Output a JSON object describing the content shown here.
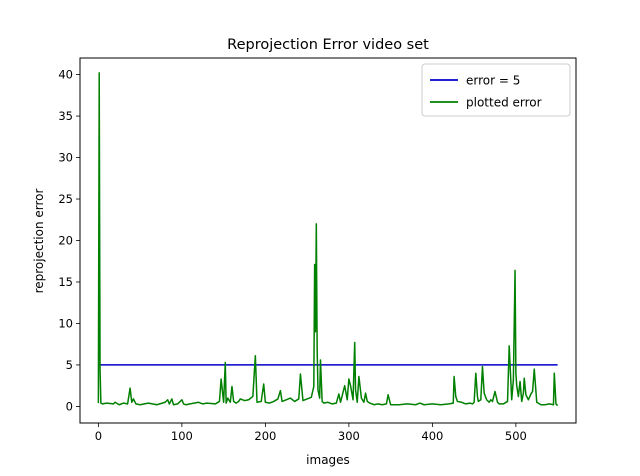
{
  "chart_data": {
    "type": "line",
    "title": "Reprojection Error video set",
    "xlabel": "images",
    "ylabel": "reprojection error",
    "xlim": [
      -22,
      572
    ],
    "ylim": [
      -2,
      42
    ],
    "xticks": [
      0,
      100,
      200,
      300,
      400,
      500
    ],
    "yticks": [
      0,
      5,
      10,
      15,
      20,
      25,
      30,
      35,
      40
    ],
    "grid": false,
    "legend_position": "top-right",
    "series": [
      {
        "name": "error = 5",
        "color": "#0000cc",
        "x": [
          0,
          550
        ],
        "y": [
          5,
          5
        ]
      },
      {
        "name": "plotted error",
        "color": "#008000",
        "x": [
          0,
          1,
          2,
          3,
          5,
          10,
          18,
          20,
          25,
          30,
          35,
          38,
          40,
          42,
          45,
          50,
          55,
          60,
          70,
          80,
          83,
          85,
          88,
          90,
          95,
          100,
          102,
          105,
          110,
          120,
          125,
          130,
          140,
          145,
          147,
          150,
          152,
          153,
          155,
          158,
          160,
          162,
          165,
          168,
          170,
          175,
          180,
          185,
          188,
          190,
          195,
          198,
          200,
          205,
          210,
          215,
          218,
          220,
          225,
          230,
          235,
          240,
          242,
          245,
          250,
          255,
          258,
          259,
          260,
          261,
          262,
          263,
          265,
          266,
          268,
          270,
          275,
          280,
          285,
          288,
          290,
          295,
          298,
          300,
          302,
          305,
          307,
          308,
          310,
          312,
          315,
          318,
          320,
          322,
          325,
          328,
          330,
          335,
          340,
          345,
          347,
          350,
          360,
          370,
          380,
          385,
          390,
          400,
          410,
          420,
          425,
          426,
          428,
          430,
          435,
          440,
          445,
          448,
          450,
          452,
          454,
          455,
          458,
          460,
          462,
          465,
          468,
          470,
          472,
          475,
          478,
          480,
          485,
          490,
          492,
          495,
          497,
          499,
          500,
          501,
          503,
          505,
          507,
          509,
          510,
          512,
          515,
          518,
          520,
          522,
          525,
          530,
          535,
          540,
          545,
          546,
          548,
          550
        ],
        "y": [
          0.4,
          40.2,
          4.5,
          0.4,
          0.3,
          0.4,
          0.3,
          0.5,
          0.2,
          0.4,
          0.3,
          2.2,
          0.5,
          0.9,
          0.3,
          0.2,
          0.3,
          0.4,
          0.2,
          0.5,
          0.8,
          0.3,
          0.9,
          0.2,
          0.3,
          0.8,
          0.3,
          0.2,
          0.3,
          0.5,
          0.3,
          0.4,
          0.3,
          0.6,
          3.3,
          0.5,
          5.3,
          0.4,
          1.0,
          0.5,
          2.4,
          0.6,
          0.4,
          0.6,
          0.9,
          0.7,
          0.8,
          1.2,
          6.1,
          0.5,
          0.6,
          2.7,
          0.5,
          0.4,
          0.6,
          0.9,
          1.9,
          0.6,
          0.8,
          1.0,
          0.6,
          0.9,
          3.9,
          0.7,
          0.9,
          1.1,
          2.4,
          17.1,
          9.0,
          22.0,
          7.0,
          2.0,
          1.0,
          5.6,
          0.6,
          0.4,
          0.5,
          0.3,
          0.4,
          1.5,
          0.5,
          2.5,
          0.8,
          3.3,
          2.5,
          0.8,
          7.7,
          2.0,
          0.5,
          3.6,
          1.0,
          0.5,
          1.6,
          0.6,
          0.4,
          0.3,
          0.2,
          0.3,
          0.2,
          0.3,
          1.4,
          0.2,
          0.2,
          0.3,
          0.2,
          0.4,
          0.2,
          0.3,
          0.2,
          0.3,
          0.4,
          3.6,
          1.2,
          0.6,
          0.5,
          0.3,
          0.4,
          0.3,
          0.5,
          4.0,
          1.2,
          0.6,
          0.8,
          4.8,
          1.6,
          0.8,
          0.5,
          0.8,
          0.6,
          1.8,
          0.5,
          0.3,
          0.3,
          0.6,
          7.3,
          0.8,
          3.2,
          16.4,
          4.0,
          2.5,
          1.2,
          3.0,
          0.6,
          1.6,
          3.4,
          1.4,
          0.8,
          1.5,
          1.8,
          4.5,
          0.5,
          0.2,
          0.2,
          0.3,
          0.2,
          4.0,
          0.3,
          0.1
        ]
      }
    ]
  }
}
